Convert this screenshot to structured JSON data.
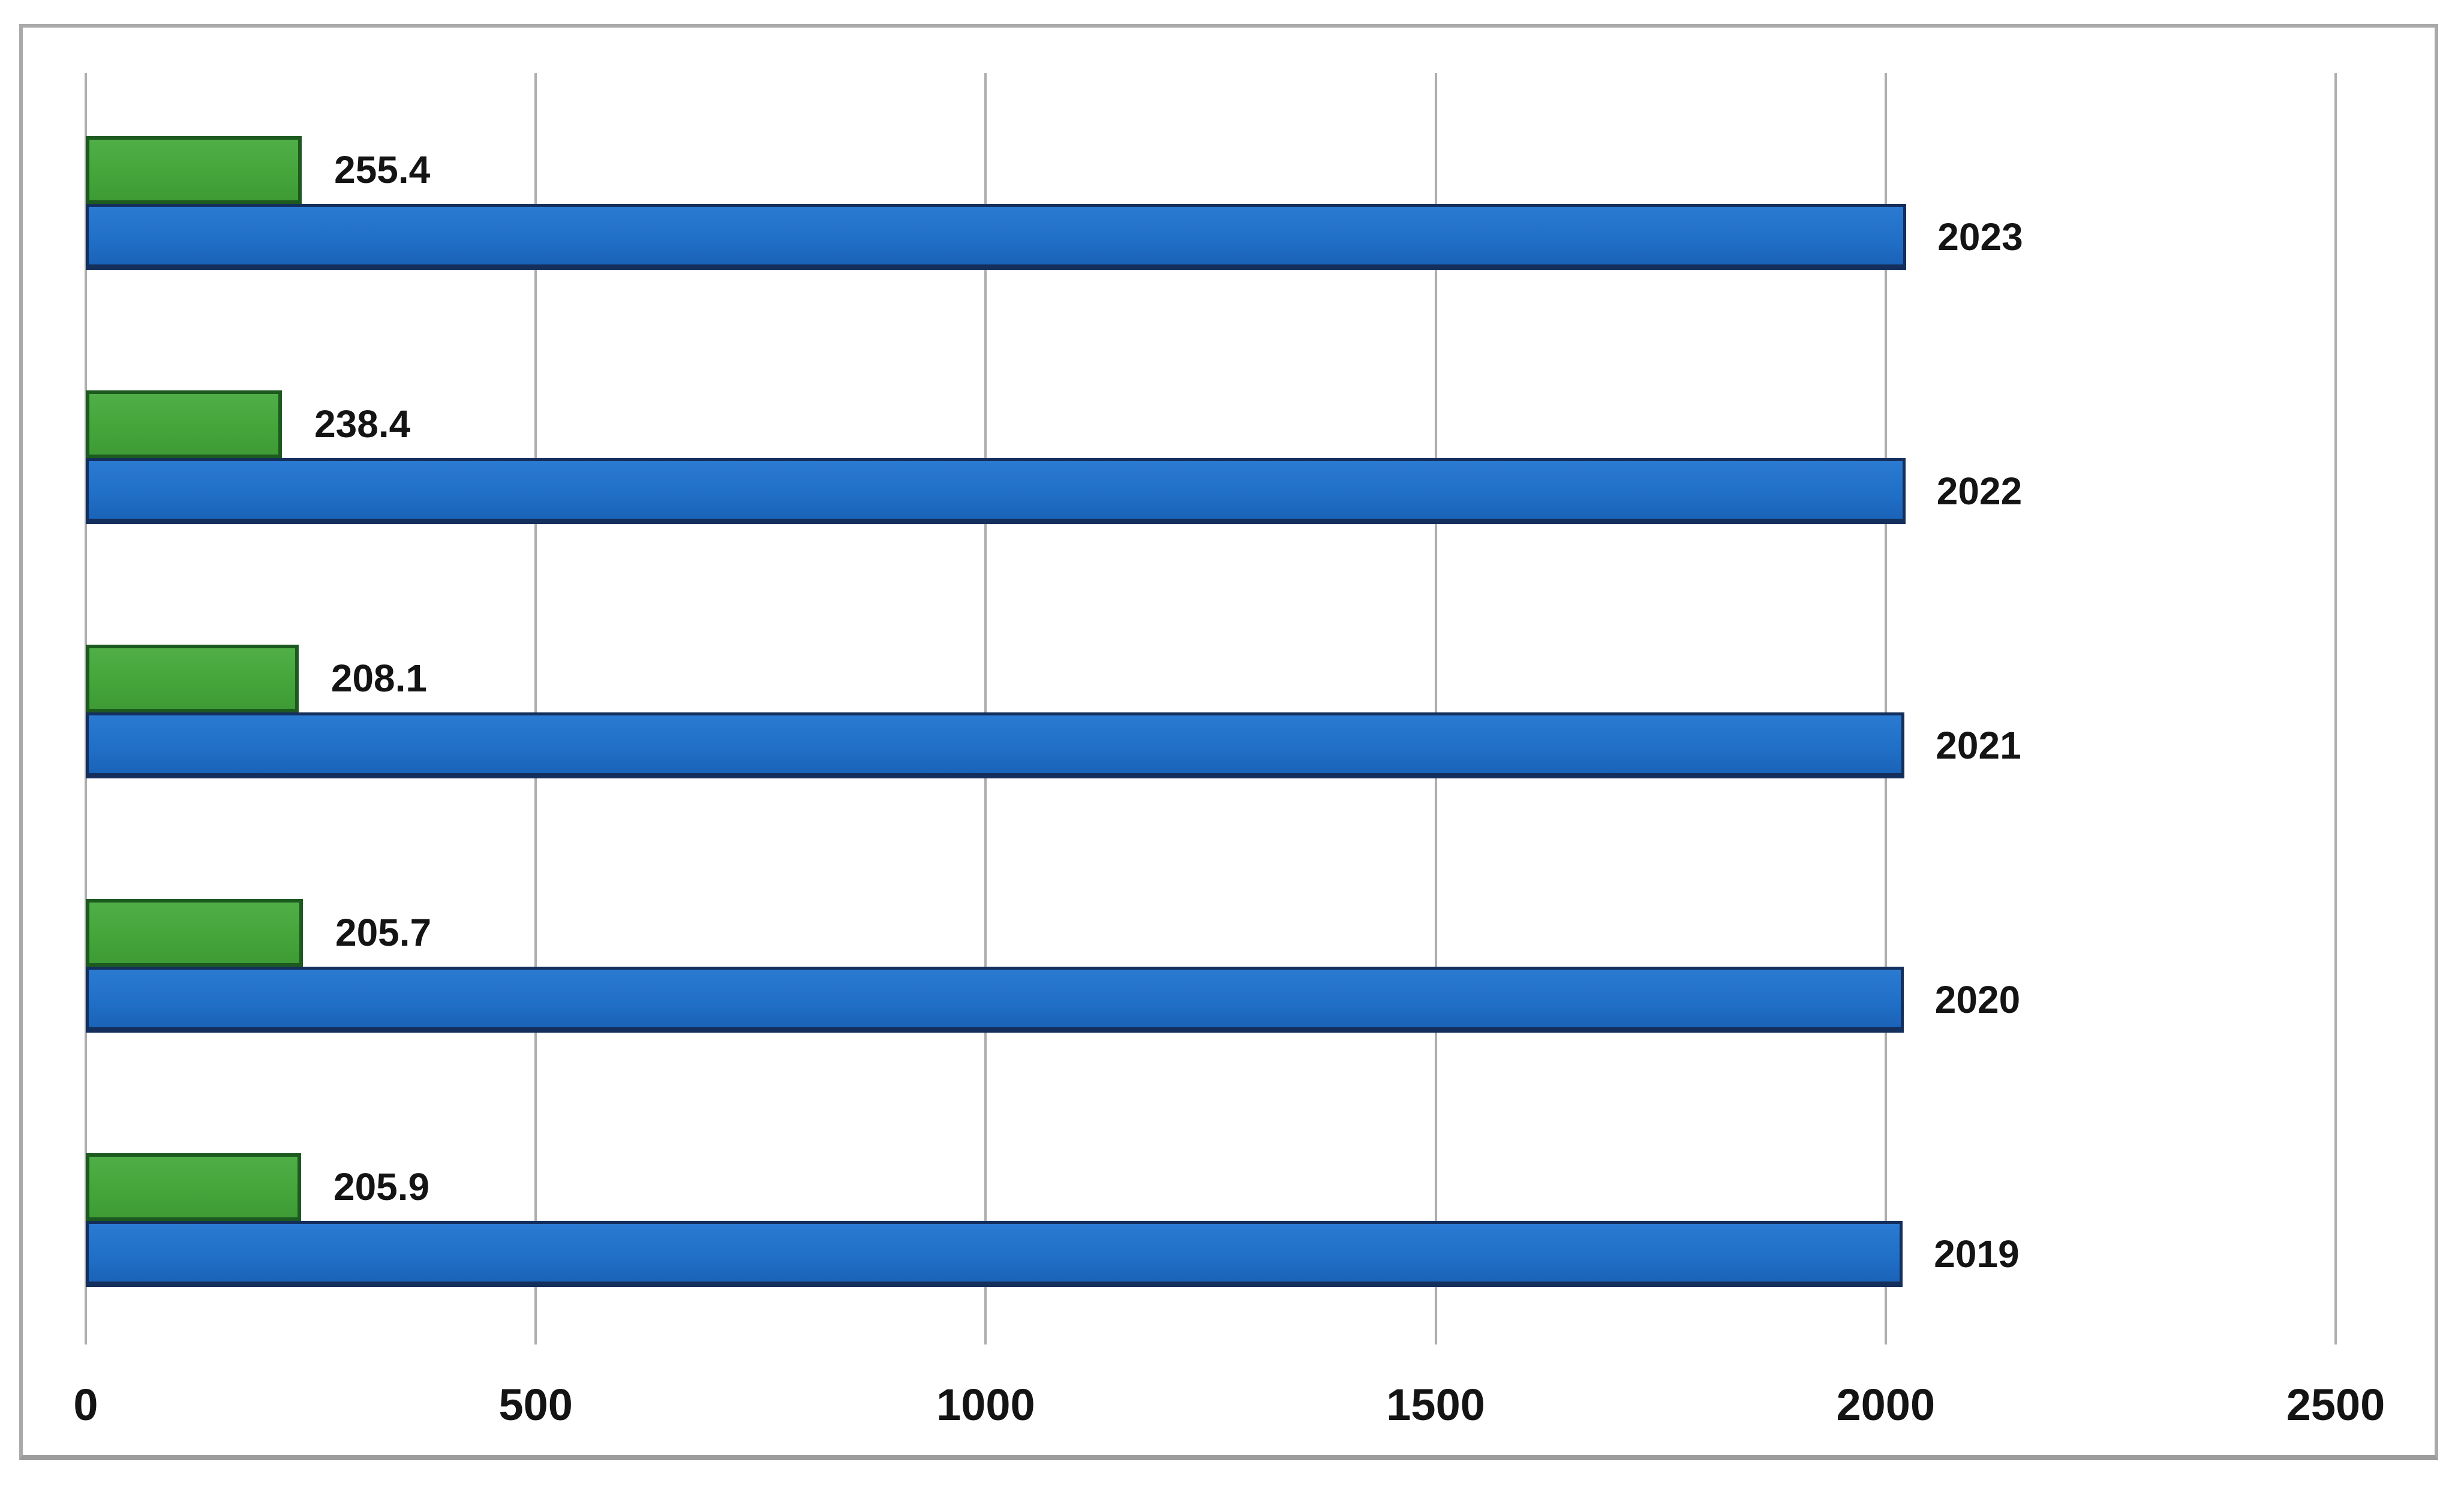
{
  "chart_data": {
    "type": "bar",
    "orientation": "horizontal",
    "title": "",
    "legend": "none",
    "grid": "vertical gridlines on",
    "categories": [
      "2023",
      "2022",
      "2021",
      "2020",
      "2019"
    ],
    "series": [
      {
        "name": "value-series-green",
        "color": "#45a53b",
        "values": [
          255.4,
          238.4,
          208.1,
          205.7,
          205.9
        ],
        "data_labels": [
          "255.4",
          "238.4",
          "208.1",
          "205.7",
          "205.9"
        ]
      },
      {
        "name": "year-series-blue",
        "color": "#2170c8",
        "values": [
          2023,
          2022,
          2021,
          2020,
          2019
        ],
        "data_labels": [
          "2023",
          "2022",
          "2021",
          "2020",
          "2019"
        ]
      }
    ],
    "xlim": [
      0,
      2500
    ],
    "x_ticks": [
      0,
      500,
      1000,
      1500,
      2000,
      2500
    ],
    "x_tick_labels": [
      "0",
      "500",
      "1000",
      "1500",
      "2000",
      "2500"
    ],
    "green_bar_axis_fraction_as_drawn": [
      0.096,
      0.0872,
      0.0946,
      0.0965,
      0.0957
    ]
  },
  "frame": {
    "border_color": "#a9a9a9",
    "background": "#ffffff",
    "gridline_color": "#aeaeae",
    "text_color": "#141414"
  }
}
